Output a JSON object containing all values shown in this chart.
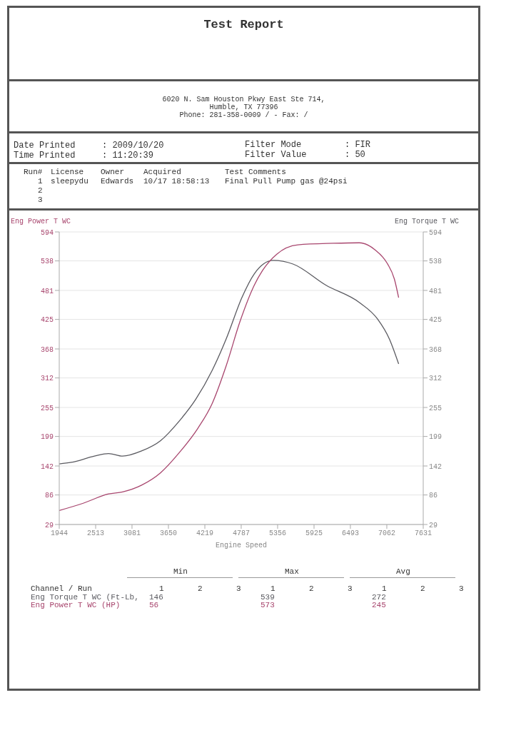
{
  "chart_data": {
    "type": "line",
    "title": "Test Report",
    "xlabel": "Engine Speed",
    "ylabel": "Eng Power T WC",
    "y2label": "Eng Torque T WC",
    "xlim": [
      1944,
      7631
    ],
    "xticks": [
      1944,
      2513,
      3081,
      3650,
      4219,
      4787,
      5356,
      5925,
      6493,
      7062,
      7631
    ],
    "ylim": [
      29,
      594
    ],
    "yticks": [
      29,
      86,
      142,
      199,
      255,
      312,
      368,
      425,
      481,
      538,
      594
    ],
    "y2lim": [
      29,
      594
    ],
    "y2ticks": [
      29,
      86,
      142,
      199,
      255,
      312,
      368,
      425,
      481,
      538,
      594
    ],
    "grid": "y",
    "marker": "none",
    "line_style": "solid",
    "series": [
      {
        "name": "Eng Torque T WC (Ft-Lb,",
        "color": "#5a5a60",
        "axis": "y2",
        "x": [
          1944,
          2131,
          2494,
          2714,
          2934,
          3231,
          3528,
          3814,
          4078,
          4331,
          4551,
          4804,
          4991,
          5288,
          5596,
          6113,
          6630,
          6916,
          7103,
          7247
        ],
        "values": [
          146,
          149,
          161,
          166,
          161,
          171,
          191,
          228,
          271,
          326,
          387,
          469,
          513,
          539,
          532,
          491,
          458,
          426,
          387,
          339
        ]
      },
      {
        "name": "Eng Power T WC (HP)",
        "color": "#a8466e",
        "axis": "y",
        "x": [
          1944,
          2318,
          2714,
          2934,
          3231,
          3528,
          3814,
          4111,
          4331,
          4551,
          4771,
          4991,
          5123,
          5343,
          5673,
          6223,
          6630,
          6883,
          7070,
          7180,
          7247
        ],
        "values": [
          56,
          70,
          88,
          92,
          105,
          129,
          167,
          215,
          262,
          335,
          422,
          491,
          520,
          551,
          569,
          572,
          573,
          559,
          533,
          503,
          467
        ]
      }
    ],
    "annotations": [
      "6020 N. Sam Houston Pkwy East Ste 714,",
      "Humble, TX  77396",
      "Phone: 281-358-0009 /  - Fax:  /",
      "Date Printed",
      ": 2009/10/20",
      "Time Printed",
      ": 11:20:39",
      "Filter Mode",
      ": FIR",
      "Filter Value",
      ": 50",
      "Run#",
      "License",
      "Owner",
      "Acquired",
      "Test Comments",
      "1",
      "sleepydu",
      "Edwards",
      "10/17 18:58:13",
      "Final Pull Pump gas @24psi",
      "2",
      "3",
      "Min",
      "Max",
      "Avg",
      "Channel / Run",
      "1",
      "2",
      "3",
      "1",
      "2",
      "3",
      "1",
      "2",
      "3",
      "146",
      "539",
      "272",
      "56",
      "573",
      "245"
    ]
  }
}
